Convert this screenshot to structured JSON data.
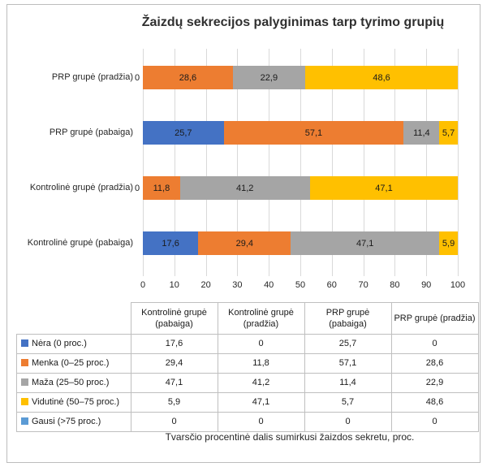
{
  "chart_data": {
    "type": "bar",
    "orientation": "horizontal",
    "stacked": true,
    "stack_total": 100,
    "title": "Žaizdų sekrecijos palyginimas tarp tyrimo grupių",
    "xlabel": "Tvarsčio procentinė dalis sumirkusi žaizdos sekretu, proc.",
    "xlim": [
      0,
      100
    ],
    "x_ticks": [
      0,
      10,
      20,
      30,
      40,
      50,
      60,
      70,
      80,
      90,
      100
    ],
    "grid": true,
    "decimal_separator": ",",
    "categories": [
      "PRP grupė (pradžia)",
      "PRP grupė (pabaiga)",
      "Kontrolinė grupė (pradžia)",
      "Kontrolinė grupė (pabaiga)"
    ],
    "series": [
      {
        "name": "Nėra (0 proc.)",
        "color": "#4472C4",
        "values": [
          0,
          25.7,
          0,
          17.6
        ]
      },
      {
        "name": "Menka (0–25 proc.)",
        "color": "#ED7D31",
        "values": [
          28.6,
          57.1,
          11.8,
          29.4
        ]
      },
      {
        "name": "Maža (25–50 proc.)",
        "color": "#A5A5A5",
        "values": [
          22.9,
          11.4,
          41.2,
          47.1
        ]
      },
      {
        "name": "Vidutinė (50–75 proc.)",
        "color": "#FFC000",
        "values": [
          48.6,
          5.7,
          47.1,
          5.9
        ]
      },
      {
        "name": "Gausi (>75 proc.)",
        "color": "#5B9BD5",
        "values": [
          0,
          0,
          0,
          0
        ]
      }
    ]
  },
  "data_table": {
    "columns": [
      "Kontrolinė grupė (pabaiga)",
      "Kontrolinė grupė (pradžia)",
      "PRP grupė (pabaiga)",
      "PRP grupė (pradžia)"
    ],
    "rows": [
      {
        "label": "Nėra (0 proc.)",
        "color": "#4472C4",
        "values": [
          "17,6",
          "0",
          "25,7",
          "0"
        ]
      },
      {
        "label": "Menka (0–25 proc.)",
        "color": "#ED7D31",
        "values": [
          "29,4",
          "11,8",
          "57,1",
          "28,6"
        ]
      },
      {
        "label": "Maža (25–50 proc.)",
        "color": "#A5A5A5",
        "values": [
          "47,1",
          "41,2",
          "11,4",
          "22,9"
        ]
      },
      {
        "label": "Vidutinė (50–75 proc.)",
        "color": "#FFC000",
        "values": [
          "5,9",
          "47,1",
          "5,7",
          "48,6"
        ]
      },
      {
        "label": "Gausi (>75 proc.)",
        "color": "#5B9BD5",
        "values": [
          "0",
          "0",
          "0",
          "0"
        ]
      }
    ]
  },
  "colors": {
    "grid": "#D9D9D9",
    "table_border": "#BFBFBF",
    "frame_border": "#BDBDBD",
    "text": "#262626"
  }
}
